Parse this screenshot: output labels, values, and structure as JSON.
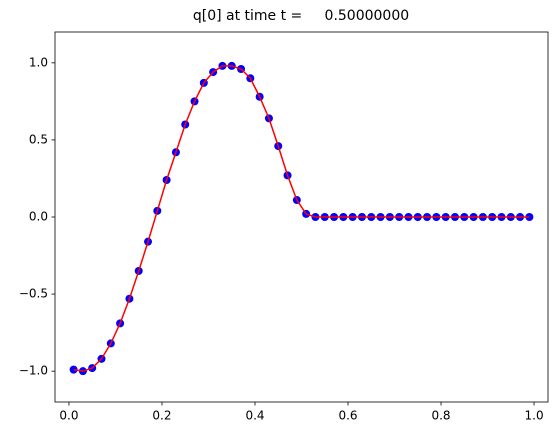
{
  "chart_data": {
    "type": "line",
    "title": "q[0] at time t =     0.50000000",
    "x": [
      0.01,
      0.03,
      0.05,
      0.07,
      0.09,
      0.11,
      0.13,
      0.15,
      0.17,
      0.19,
      0.21,
      0.23,
      0.25,
      0.27,
      0.29,
      0.31,
      0.33,
      0.35,
      0.37,
      0.39,
      0.41,
      0.43,
      0.45,
      0.47,
      0.49,
      0.51,
      0.53,
      0.55,
      0.57,
      0.59,
      0.61,
      0.63,
      0.65,
      0.67,
      0.69,
      0.71,
      0.73,
      0.75,
      0.77,
      0.79,
      0.81,
      0.83,
      0.85,
      0.87,
      0.89,
      0.91,
      0.93,
      0.95,
      0.97,
      0.99
    ],
    "series": [
      {
        "color": "#0000ff",
        "marker": "o",
        "values": [
          -0.99,
          -1.0,
          -0.98,
          -0.92,
          -0.82,
          -0.69,
          -0.53,
          -0.35,
          -0.16,
          0.04,
          0.24,
          0.42,
          0.6,
          0.75,
          0.87,
          0.94,
          0.98,
          0.98,
          0.96,
          0.9,
          0.78,
          0.64,
          0.46,
          0.27,
          0.11,
          0.02,
          0,
          0,
          0,
          0,
          0,
          0,
          0,
          0,
          0,
          0,
          0,
          0,
          0,
          0,
          0,
          0,
          0,
          0,
          0,
          0,
          0,
          0,
          0,
          0
        ]
      },
      {
        "color": "#ff0000",
        "linestyle": "-",
        "values": [
          -0.99,
          -1.0,
          -0.98,
          -0.92,
          -0.82,
          -0.69,
          -0.53,
          -0.35,
          -0.16,
          0.04,
          0.24,
          0.42,
          0.6,
          0.75,
          0.87,
          0.94,
          0.98,
          0.98,
          0.96,
          0.9,
          0.78,
          0.64,
          0.46,
          0.27,
          0.11,
          0.02,
          0,
          0,
          0,
          0,
          0,
          0,
          0,
          0,
          0,
          0,
          0,
          0,
          0,
          0,
          0,
          0,
          0,
          0,
          0,
          0,
          0,
          0,
          0,
          0
        ]
      }
    ],
    "xlim": [
      -0.03,
      1.03
    ],
    "xticks": [
      {
        "value": 0,
        "label": "0.0"
      },
      0.2,
      0.4,
      0.6,
      0.8,
      {
        "value": 1,
        "label": "1.0"
      }
    ],
    "ylim": [
      -1.2,
      1.2
    ],
    "yticks": [
      {
        "value": -1,
        "label": "−1.0"
      },
      {
        "value": -0.5,
        "label": "−0.5"
      },
      {
        "value": 0,
        "label": "0.0"
      },
      0.5,
      {
        "value": 1,
        "label": "1.0"
      }
    ]
  }
}
